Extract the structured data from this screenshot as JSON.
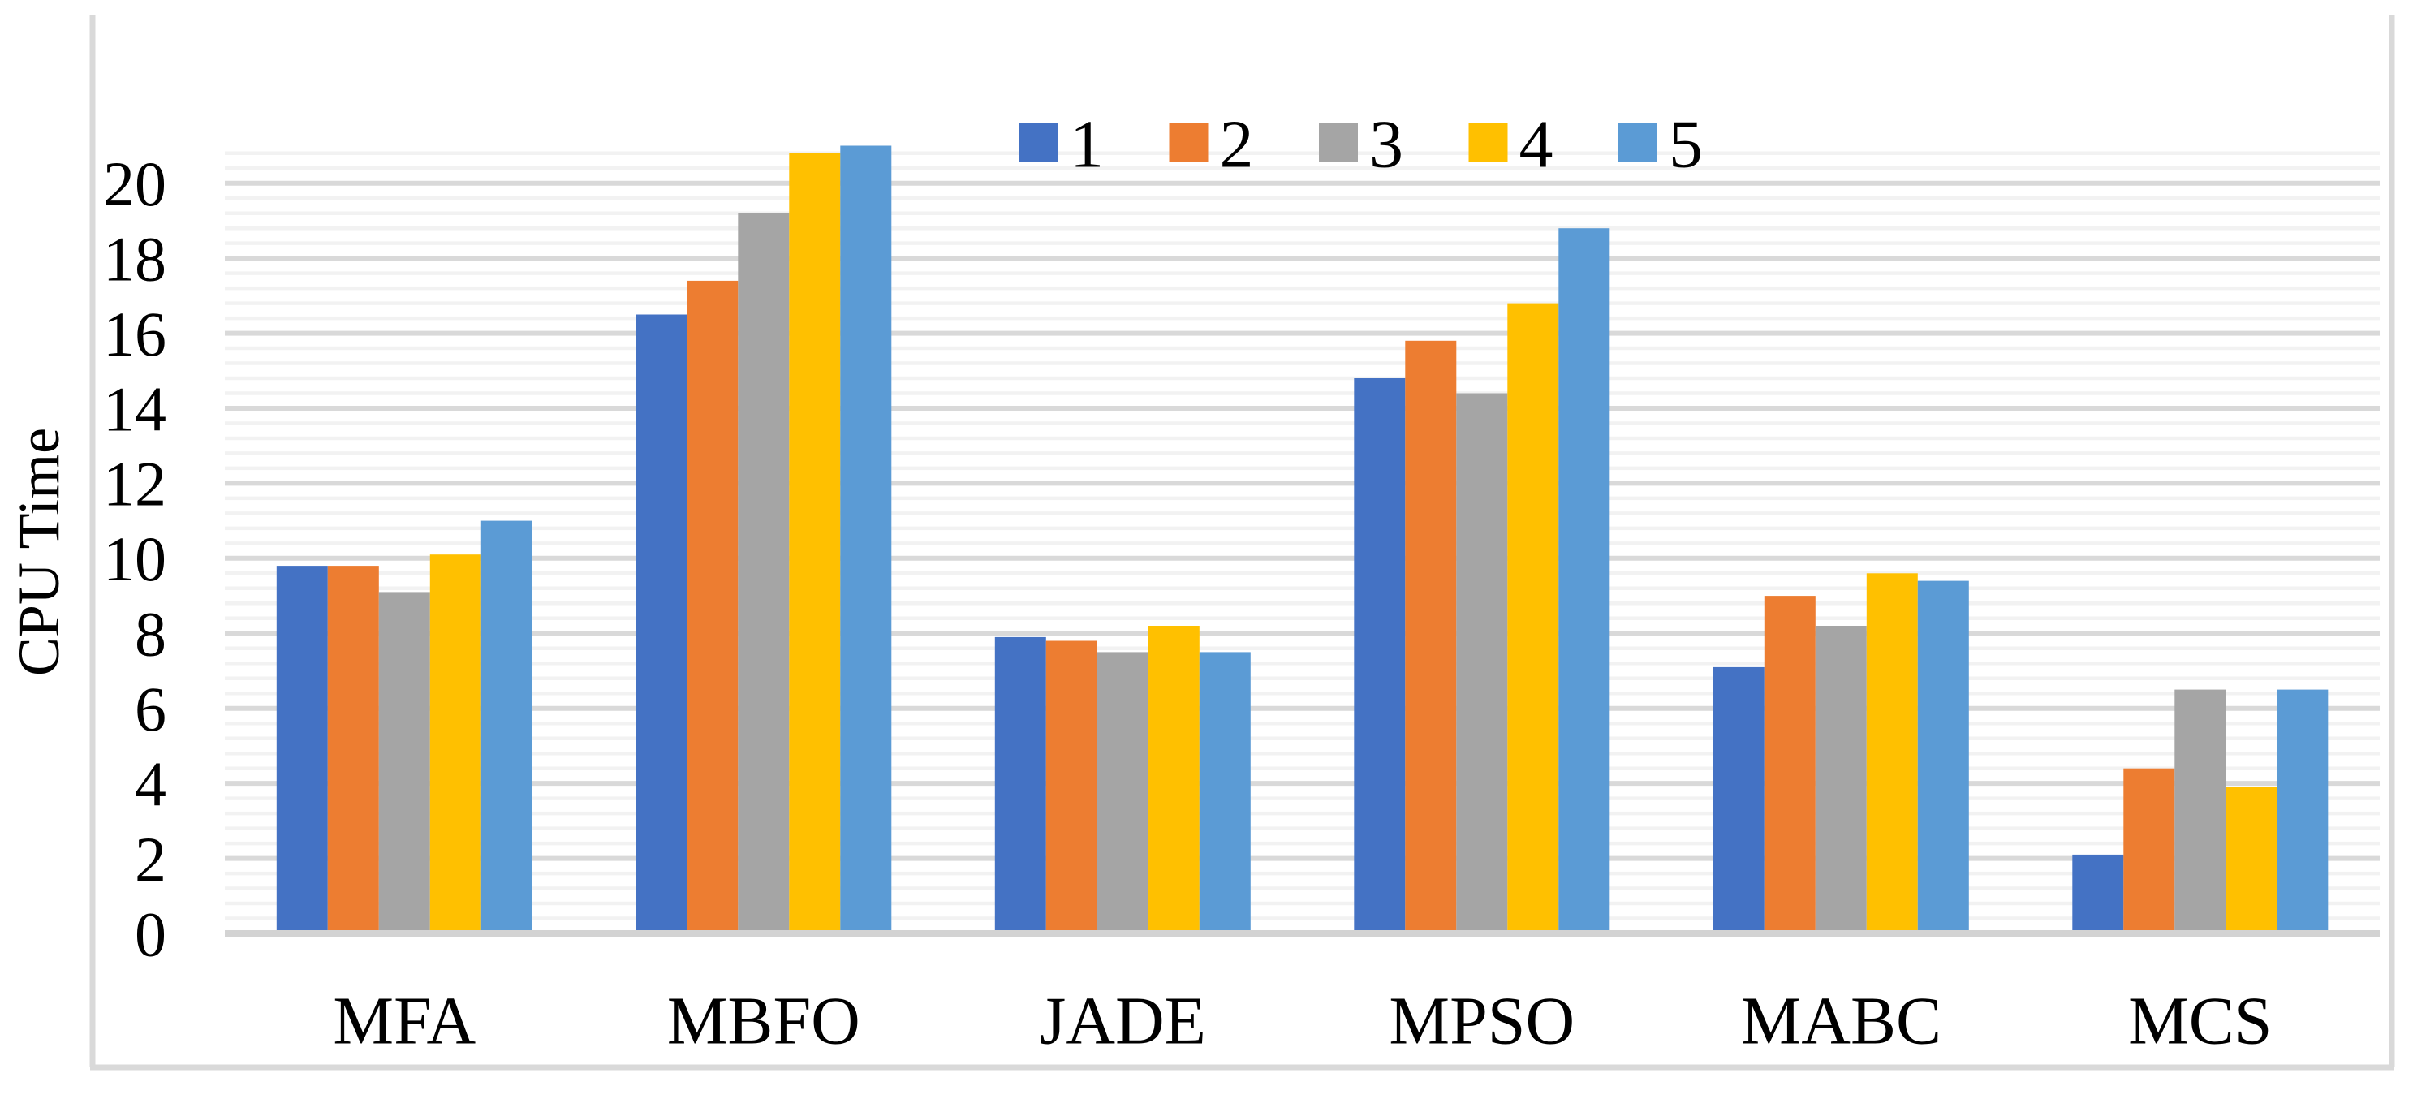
{
  "chart_data": {
    "type": "bar",
    "title": "",
    "xlabel": "",
    "ylabel": "CPU Time",
    "categories": [
      "MFA",
      "MBFO",
      "JADE",
      "MPSO",
      "MABC",
      "MCS"
    ],
    "series": [
      {
        "name": "1",
        "color": "#4472C4",
        "values": [
          9.8,
          16.5,
          7.9,
          14.8,
          7.1,
          2.1
        ]
      },
      {
        "name": "2",
        "color": "#ED7D31",
        "values": [
          9.8,
          17.4,
          7.8,
          15.8,
          9.0,
          4.4
        ]
      },
      {
        "name": "3",
        "color": "#A5A5A5",
        "values": [
          9.1,
          19.2,
          7.5,
          14.4,
          8.2,
          6.5
        ]
      },
      {
        "name": "4",
        "color": "#FFC000",
        "values": [
          10.1,
          20.8,
          8.2,
          16.8,
          9.6,
          3.9
        ]
      },
      {
        "name": "5",
        "color": "#5B9BD5",
        "values": [
          11.0,
          21.0,
          7.5,
          18.8,
          9.4,
          6.5
        ]
      }
    ],
    "ylim": [
      0,
      21
    ],
    "y_major_unit": 2,
    "y_minor_unit": 0.4,
    "yticks": [
      "0",
      "2",
      "4",
      "6",
      "8",
      "10",
      "12",
      "14",
      "16",
      "18",
      "20"
    ],
    "legend_position": "top-center",
    "legend_labels": [
      "1",
      "2",
      "3",
      "4",
      "5"
    ],
    "grid": "major-and-minor-horizontal",
    "style": {
      "grid_minor_color": "#F2F2F2",
      "grid_major_color": "#D9D9D9",
      "axis_line_color": "#D3D3D3",
      "frame_color": "#D9D9D9",
      "text_color": "#000000",
      "background_color": "#FFFFFF"
    }
  }
}
